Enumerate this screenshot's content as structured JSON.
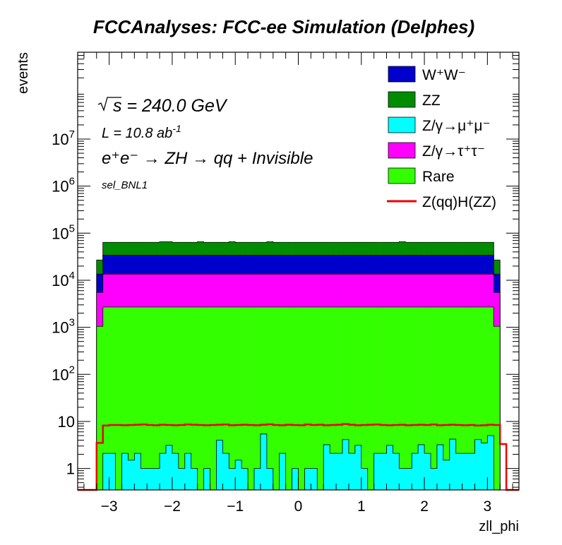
{
  "chart_data": {
    "type": "area",
    "title": "FCCAnalyses: FCC-ee Simulation (Delphes)",
    "xlabel": "zll_phi",
    "ylabel": "events",
    "yscale": "log",
    "xlim": [
      -3.5,
      3.5
    ],
    "ylim": [
      0.35,
      700000000
    ],
    "x_ticks": [
      -3,
      -2,
      -1,
      0,
      1,
      2,
      3
    ],
    "x_tick_labels": [
      "−3",
      "−2",
      "−1",
      "0",
      "1",
      "2",
      "3"
    ],
    "y_ticks": [
      1,
      10,
      100,
      1000,
      10000,
      100000,
      1000000,
      10000000
    ],
    "y_tick_labels": [
      {
        "base": "1",
        "exp": ""
      },
      {
        "base": "10",
        "exp": ""
      },
      {
        "base": "10",
        "exp": "2"
      },
      {
        "base": "10",
        "exp": "3"
      },
      {
        "base": "10",
        "exp": "4"
      },
      {
        "base": "10",
        "exp": "5"
      },
      {
        "base": "10",
        "exp": "6"
      },
      {
        "base": "10",
        "exp": "7"
      }
    ],
    "annotations": {
      "sqrt_s": "s = 240.0 GeV",
      "lumi_main": "L = 10.8 ab",
      "lumi_exp": "-1",
      "process": "e⁺e⁻ → ZH → qq + Invisible",
      "selection": "sel_BNL1"
    },
    "legend": {
      "placement": "top-right",
      "entries": [
        {
          "label": "W⁺W⁻",
          "color": "#0000cc",
          "style": "fill"
        },
        {
          "label": "ZZ",
          "color": "#008c00",
          "style": "fill"
        },
        {
          "label": "Z/γ→μ⁺μ⁻",
          "color": "#00ffff",
          "style": "fill"
        },
        {
          "label": "Z/γ→τ⁺τ⁻",
          "color": "#ff00ff",
          "style": "fill"
        },
        {
          "label": "Rare",
          "color": "#33ff00",
          "style": "fill"
        },
        {
          "label": "Z(qq)H(ZZ)",
          "color": "#ee0000",
          "style": "line"
        }
      ]
    },
    "stack": {
      "bin_edges_start": -3.2,
      "bin_width": 0.1,
      "cyan_tops": [
        0,
        2.1,
        2.1,
        0,
        2.1,
        1.5,
        2.1,
        1.0,
        1.0,
        1.0,
        2.1,
        3.1,
        2.1,
        1.0,
        2.1,
        1.0,
        0,
        1.0,
        0,
        4.0,
        2.1,
        1.0,
        1.5,
        1.0,
        0,
        1.0,
        5.4,
        1.0,
        0,
        2.1,
        0,
        1.0,
        0,
        1.0,
        1.0,
        0,
        3.2,
        2.1,
        2.1,
        4.1,
        2.1,
        3.1,
        1.0,
        0,
        2.1,
        2.1,
        3.1,
        2.1,
        1.0,
        1.0,
        2.1,
        3.2,
        2.1,
        1.0,
        3.2,
        1.5,
        4.2,
        2.1,
        2.1,
        2.1,
        4.1,
        3.5,
        5.0,
        0
      ],
      "rare_top": [
        1050,
        2700,
        2700,
        2700,
        2700,
        2700,
        2700,
        2700,
        2700,
        2700,
        2700,
        2700,
        2700,
        2700,
        2700,
        2700,
        2700,
        2700,
        2700,
        2700,
        2700,
        2700,
        2700,
        2700,
        2700,
        2700,
        2700,
        2700,
        2700,
        2700,
        2700,
        2700,
        2700,
        2700,
        2700,
        2700,
        2700,
        2700,
        2700,
        2700,
        2700,
        2700,
        2700,
        2700,
        2700,
        2700,
        2700,
        2700,
        2700,
        2700,
        2700,
        2700,
        2700,
        2700,
        2700,
        2700,
        2700,
        2700,
        2700,
        2700,
        2700,
        2700,
        2700,
        1050
      ],
      "tautau_top": [
        5500,
        13500,
        13500,
        13500,
        13500,
        13500,
        13500,
        13500,
        13500,
        13500,
        13500,
        13500,
        13500,
        13500,
        13500,
        13500,
        13500,
        13500,
        13500,
        13500,
        13500,
        13500,
        13500,
        13500,
        13500,
        13500,
        13500,
        13500,
        13500,
        13500,
        13500,
        13500,
        13500,
        13500,
        13500,
        13500,
        13500,
        13500,
        13500,
        13500,
        13500,
        13500,
        13500,
        13500,
        13500,
        13500,
        13500,
        13500,
        13500,
        13500,
        13500,
        13500,
        13500,
        13500,
        13500,
        13500,
        13500,
        13500,
        13500,
        13500,
        13500,
        13500,
        13500,
        5500
      ],
      "ww_top": [
        13500,
        34000,
        34000,
        34000,
        34000,
        34000,
        34000,
        34000,
        34000,
        34000,
        34000,
        34000,
        34000,
        34000,
        34000,
        34000,
        34000,
        34000,
        34000,
        34000,
        34000,
        34000,
        34000,
        34000,
        34000,
        34000,
        34000,
        34000,
        34000,
        34000,
        34000,
        34000,
        34000,
        34000,
        34000,
        34000,
        34000,
        34000,
        34000,
        34000,
        34000,
        34000,
        34000,
        34000,
        34000,
        34000,
        34000,
        34000,
        34000,
        34000,
        34000,
        34000,
        34000,
        34000,
        34000,
        34000,
        34000,
        34000,
        34000,
        34000,
        34000,
        34000,
        34000,
        13500
      ],
      "zz_top": [
        27000,
        64000,
        64000,
        64000,
        64000,
        64000,
        64000,
        64000,
        64000,
        64000,
        66000,
        66000,
        64000,
        64000,
        64000,
        64000,
        66000,
        64000,
        64000,
        64000,
        64000,
        66000,
        64000,
        64000,
        64000,
        64000,
        64000,
        66000,
        64000,
        64000,
        64000,
        64000,
        64000,
        64000,
        64000,
        64000,
        64000,
        64000,
        64000,
        64000,
        64000,
        64000,
        64000,
        64000,
        64000,
        64000,
        64000,
        64000,
        66000,
        64000,
        64000,
        64000,
        64000,
        64000,
        64000,
        64000,
        64000,
        64000,
        64000,
        64000,
        64000,
        64000,
        64000,
        27000
      ]
    },
    "signal": {
      "name": "Z(qq)H(ZZ)",
      "bin_edges_start": -3.3,
      "bin_width": 0.1,
      "values": [
        0,
        3.5,
        8.2,
        8.4,
        8.4,
        8.3,
        8.4,
        8.5,
        8.6,
        8.4,
        8.3,
        8.5,
        8.4,
        8.3,
        8.4,
        8.6,
        8.5,
        8.4,
        8.3,
        8.4,
        8.5,
        8.6,
        8.3,
        8.4,
        8.5,
        8.4,
        8.3,
        8.5,
        8.7,
        8.4,
        8.3,
        8.5,
        8.4,
        8.3,
        8.6,
        8.4,
        8.5,
        8.3,
        8.4,
        8.5,
        8.8,
        8.5,
        8.3,
        8.4,
        8.5,
        8.6,
        8.4,
        8.3,
        8.4,
        8.5,
        8.3,
        8.4,
        8.5,
        8.4,
        8.6,
        8.3,
        8.4,
        8.5,
        8.4,
        8.3,
        8.4,
        8.2,
        8.3,
        8.5,
        8.4,
        3.3,
        0
      ]
    }
  }
}
